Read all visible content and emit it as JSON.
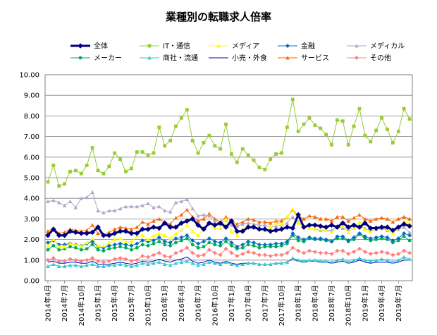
{
  "chart_data": {
    "type": "line",
    "title": "業種別の転職求人倍率",
    "xlabel": "",
    "ylabel": "",
    "ylim": [
      0,
      10
    ],
    "yticks": [
      "0.00",
      "1.00",
      "2.00",
      "3.00",
      "4.00",
      "5.00",
      "6.00",
      "7.00",
      "8.00",
      "9.00",
      "10.00"
    ],
    "grid": true,
    "legend": "top",
    "x": [
      "2014年4月",
      "2014年5月",
      "2014年6月",
      "2014年7月",
      "2014年8月",
      "2014年9月",
      "2014年10月",
      "2014年11月",
      "2014年12月",
      "2015年1月",
      "2015年2月",
      "2015年3月",
      "2015年4月",
      "2015年5月",
      "2015年6月",
      "2015年7月",
      "2015年8月",
      "2015年9月",
      "2015年10月",
      "2015年11月",
      "2015年12月",
      "2016年1月",
      "2016年2月",
      "2016年3月",
      "2016年4月",
      "2016年5月",
      "2016年6月",
      "2016年7月",
      "2016年8月",
      "2016年9月",
      "2016年10月",
      "2016年11月",
      "2016年12月",
      "2017年1月",
      "2017年2月",
      "2017年3月",
      "2017年4月",
      "2017年5月",
      "2017年6月",
      "2017年7月",
      "2017年8月",
      "2017年9月",
      "2017年10月",
      "2017年11月",
      "2017年12月",
      "2018年1月",
      "2018年2月",
      "2018年3月",
      "2018年4月",
      "2018年5月",
      "2018年6月",
      "2018年7月",
      "2018年8月",
      "2018年9月",
      "2018年10月",
      "2018年11月",
      "2018年12月",
      "2019年1月",
      "2019年2月",
      "2019年3月",
      "2019年4月",
      "2019年5月",
      "2019年6月",
      "2019年7月",
      "2019年8月",
      "2019年9月"
    ],
    "xtick_labels": [
      "2014年4月",
      "2014年7月",
      "2014年10月",
      "2015年1月",
      "2015年4月",
      "2015年7月",
      "2015年10月",
      "2016年1月",
      "2016年4月",
      "2016年7月",
      "2016年10月",
      "2017年1月",
      "2017年4月",
      "2017年7月",
      "2017年10月",
      "2018年1月",
      "2018年4月",
      "2018年7月",
      "2018年10月",
      "2019年1月",
      "2019年4月",
      "2019年7月"
    ],
    "series": [
      {
        "name": "全体",
        "color": "#00007f",
        "marker": "diamond",
        "width": 3,
        "values": [
          2.2,
          2.5,
          2.2,
          2.2,
          2.4,
          2.35,
          2.3,
          2.3,
          2.35,
          2.6,
          2.2,
          2.2,
          2.3,
          2.4,
          2.4,
          2.3,
          2.3,
          2.5,
          2.5,
          2.6,
          2.55,
          2.8,
          2.6,
          2.6,
          2.8,
          2.9,
          3.0,
          2.7,
          2.5,
          2.8,
          2.7,
          2.8,
          2.6,
          2.9,
          2.4,
          2.4,
          2.6,
          2.6,
          2.5,
          2.5,
          2.4,
          2.45,
          2.5,
          2.6,
          2.55,
          3.2,
          2.6,
          2.7,
          2.7,
          2.65,
          2.6,
          2.7,
          2.6,
          2.8,
          2.6,
          2.7,
          2.6,
          2.8,
          2.55,
          2.55,
          2.6,
          2.6,
          2.45,
          2.6,
          2.75,
          2.65
        ]
      },
      {
        "name": "IT・通信",
        "color": "#99cc33",
        "marker": "square",
        "width": 1,
        "values": [
          4.8,
          5.6,
          4.6,
          4.7,
          5.3,
          5.35,
          5.2,
          5.6,
          6.45,
          5.35,
          5.2,
          5.55,
          6.2,
          5.9,
          5.3,
          5.45,
          6.25,
          6.25,
          6.1,
          6.2,
          7.45,
          6.55,
          6.8,
          7.5,
          7.9,
          8.3,
          6.8,
          6.2,
          6.7,
          7.05,
          6.55,
          6.4,
          7.6,
          6.15,
          5.75,
          6.4,
          6.1,
          5.85,
          5.5,
          5.4,
          5.9,
          6.15,
          6.2,
          7.45,
          8.8,
          7.25,
          7.6,
          7.9,
          7.55,
          7.4,
          7.1,
          6.6,
          7.8,
          7.75,
          6.6,
          7.5,
          8.35,
          7.05,
          6.75,
          7.3,
          7.9,
          7.35,
          6.7,
          7.25,
          8.35,
          7.85
        ]
      },
      {
        "name": "メディア",
        "color": "#ffff00",
        "marker": "triangle",
        "width": 1,
        "values": [
          1.7,
          2.0,
          1.65,
          1.65,
          1.8,
          1.75,
          1.7,
          1.85,
          2.05,
          1.7,
          1.7,
          1.85,
          2.0,
          2.05,
          1.9,
          1.9,
          2.15,
          2.2,
          2.0,
          2.2,
          2.3,
          2.2,
          2.05,
          2.3,
          2.45,
          2.7,
          2.4,
          2.2,
          2.5,
          2.75,
          2.55,
          2.55,
          3.0,
          2.4,
          2.2,
          2.5,
          2.6,
          2.6,
          2.5,
          2.45,
          2.6,
          2.8,
          2.75,
          3.1,
          3.5,
          2.8,
          2.6,
          2.55,
          2.5,
          2.5,
          2.45,
          2.35,
          2.6,
          2.65,
          2.35,
          2.55,
          2.85,
          2.5,
          2.4,
          2.55,
          2.6,
          2.5,
          2.3,
          2.55,
          2.85,
          2.8
        ]
      },
      {
        "name": "金融",
        "color": "#0070c0",
        "marker": "diamond",
        "width": 1,
        "values": [
          1.85,
          1.95,
          1.75,
          1.75,
          1.8,
          1.75,
          1.7,
          1.8,
          1.9,
          1.65,
          1.6,
          1.7,
          1.75,
          1.8,
          1.75,
          1.7,
          1.8,
          1.95,
          1.9,
          1.95,
          2.1,
          1.9,
          1.85,
          2.05,
          2.1,
          2.2,
          1.95,
          1.8,
          1.9,
          2.05,
          1.9,
          1.85,
          2.05,
          1.85,
          1.65,
          1.75,
          1.9,
          1.85,
          1.75,
          1.75,
          1.75,
          1.8,
          1.8,
          1.9,
          2.3,
          2.1,
          2.0,
          2.1,
          2.05,
          2.05,
          2.0,
          1.9,
          2.15,
          2.15,
          1.95,
          2.1,
          2.3,
          2.15,
          2.05,
          2.1,
          2.15,
          2.1,
          1.95,
          2.05,
          2.3,
          2.2
        ]
      },
      {
        "name": "メディカル",
        "color": "#b3a6cc",
        "marker": "triangle",
        "width": 1,
        "values": [
          3.85,
          3.9,
          3.8,
          3.65,
          3.85,
          3.55,
          4.0,
          4.05,
          4.3,
          3.4,
          3.3,
          3.4,
          3.4,
          3.5,
          3.6,
          3.6,
          3.6,
          3.65,
          3.75,
          3.55,
          3.6,
          3.4,
          3.35,
          3.8,
          3.85,
          3.95,
          3.5,
          3.15,
          3.2,
          3.15,
          2.9,
          2.75,
          2.95,
          2.7,
          2.65,
          2.75,
          2.8,
          2.75,
          2.7,
          2.7,
          2.6,
          2.65,
          2.7,
          2.8,
          3.1,
          2.85,
          2.6,
          2.55,
          2.5,
          2.45,
          2.45,
          2.45,
          2.6,
          2.55,
          2.5,
          2.55,
          2.65,
          2.55,
          2.45,
          2.5,
          2.55,
          2.45,
          2.4,
          2.5,
          2.6,
          2.35
        ]
      },
      {
        "name": "メーカー",
        "color": "#00b050",
        "marker": "circle",
        "width": 1,
        "values": [
          1.5,
          1.7,
          1.5,
          1.55,
          1.65,
          1.6,
          1.5,
          1.55,
          1.75,
          1.5,
          1.45,
          1.55,
          1.6,
          1.65,
          1.6,
          1.5,
          1.6,
          1.75,
          1.7,
          1.8,
          1.9,
          1.75,
          1.7,
          1.85,
          1.95,
          2.05,
          1.75,
          1.6,
          1.65,
          1.85,
          1.75,
          1.7,
          1.9,
          1.7,
          1.55,
          1.6,
          1.75,
          1.7,
          1.6,
          1.65,
          1.65,
          1.65,
          1.7,
          1.8,
          2.2,
          1.95,
          1.9,
          2.05,
          2.0,
          2.0,
          1.95,
          1.9,
          2.05,
          2.05,
          1.9,
          2.0,
          2.25,
          2.05,
          1.95,
          2.0,
          2.05,
          2.0,
          1.85,
          1.95,
          2.15,
          1.95
        ]
      },
      {
        "name": "商社・流通",
        "color": "#33cccc",
        "marker": "triangle",
        "width": 1,
        "values": [
          0.7,
          0.8,
          0.7,
          0.7,
          0.75,
          0.75,
          0.7,
          0.75,
          0.8,
          0.7,
          0.7,
          0.75,
          0.75,
          0.8,
          0.75,
          0.7,
          0.75,
          0.85,
          0.8,
          0.85,
          0.9,
          0.8,
          0.75,
          0.85,
          0.9,
          0.95,
          0.85,
          0.75,
          0.8,
          0.9,
          0.85,
          0.8,
          0.9,
          0.8,
          0.75,
          0.8,
          0.85,
          0.85,
          0.8,
          0.8,
          0.8,
          0.85,
          0.85,
          0.9,
          1.1,
          1.0,
          0.95,
          1.0,
          1.0,
          0.95,
          0.95,
          0.9,
          1.0,
          1.05,
          0.9,
          1.0,
          1.1,
          1.0,
          0.95,
          1.0,
          1.05,
          1.0,
          0.9,
          1.0,
          1.15,
          1.05
        ]
      },
      {
        "name": "小売・外食",
        "color": "#0000cc",
        "marker": "none",
        "width": 1,
        "values": [
          0.9,
          0.95,
          0.85,
          0.85,
          0.9,
          0.9,
          0.85,
          0.85,
          0.95,
          0.8,
          0.8,
          0.8,
          0.85,
          0.9,
          0.85,
          0.8,
          0.85,
          0.95,
          0.9,
          0.95,
          1.05,
          0.95,
          0.9,
          1.0,
          1.05,
          1.15,
          0.95,
          0.85,
          0.9,
          1.0,
          0.9,
          0.85,
          0.95,
          0.85,
          0.8,
          0.85,
          0.85,
          0.85,
          0.8,
          0.8,
          0.8,
          0.85,
          0.85,
          0.9,
          1.05,
          0.95,
          0.9,
          0.95,
          0.95,
          0.9,
          0.9,
          0.85,
          0.9,
          0.95,
          0.85,
          0.9,
          1.0,
          0.9,
          0.85,
          0.9,
          0.9,
          0.9,
          0.85,
          0.9,
          1.0,
          1.0
        ]
      },
      {
        "name": "サービス",
        "color": "#ff6600",
        "marker": "triangle",
        "width": 1,
        "values": [
          2.4,
          2.55,
          2.3,
          2.35,
          2.5,
          2.45,
          2.4,
          2.45,
          2.7,
          2.3,
          2.25,
          2.35,
          2.5,
          2.6,
          2.55,
          2.5,
          2.6,
          2.85,
          2.75,
          2.9,
          3.0,
          2.85,
          2.75,
          3.05,
          3.2,
          3.45,
          3.1,
          2.9,
          3.0,
          3.25,
          3.0,
          2.85,
          3.1,
          2.9,
          2.75,
          2.85,
          3.0,
          2.95,
          2.85,
          2.85,
          2.8,
          2.9,
          2.9,
          3.1,
          3.45,
          3.15,
          3.0,
          3.15,
          3.1,
          3.0,
          3.0,
          2.9,
          3.1,
          3.1,
          2.9,
          3.05,
          3.2,
          3.0,
          2.9,
          3.0,
          3.05,
          3.0,
          2.85,
          3.0,
          3.1,
          3.0
        ]
      },
      {
        "name": "その他",
        "color": "#ff8080",
        "marker": "diamond",
        "width": 1,
        "values": [
          1.0,
          1.1,
          0.95,
          0.95,
          1.05,
          1.0,
          0.95,
          1.0,
          1.1,
          0.95,
          0.9,
          0.95,
          1.05,
          1.1,
          1.05,
          0.95,
          1.0,
          1.2,
          1.15,
          1.25,
          1.35,
          1.2,
          1.15,
          1.35,
          1.45,
          1.6,
          1.35,
          1.2,
          1.25,
          1.5,
          1.35,
          1.25,
          1.55,
          1.35,
          1.2,
          1.3,
          1.4,
          1.35,
          1.25,
          1.25,
          1.2,
          1.25,
          1.25,
          1.35,
          1.6,
          1.45,
          1.35,
          1.45,
          1.4,
          1.35,
          1.35,
          1.3,
          1.45,
          1.45,
          1.3,
          1.4,
          1.55,
          1.4,
          1.3,
          1.35,
          1.4,
          1.35,
          1.25,
          1.3,
          1.45,
          1.35
        ]
      }
    ]
  }
}
